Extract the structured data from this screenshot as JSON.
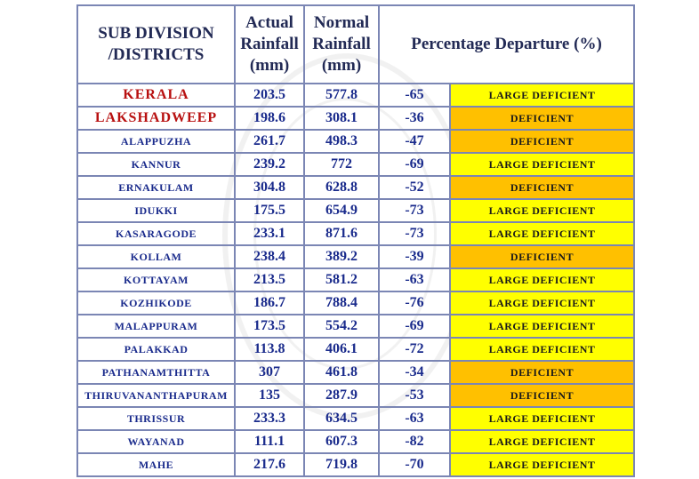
{
  "table": {
    "headers": {
      "subdivision_line1": "SUB DIVISION",
      "subdivision_line2": "/DISTRICTS",
      "actual_line1": "Actual",
      "actual_line2": "Rainfall",
      "actual_line3": "(mm)",
      "normal_line1": "Normal",
      "normal_line2": "Rainfall",
      "normal_line3": "(mm)",
      "percentage": "Percentage Departure (%)"
    },
    "rows": [
      {
        "name": "KERALA",
        "actual": "203.5",
        "normal": "577.8",
        "departure": "-65",
        "category": "LARGE DEFICIENT",
        "color": "#ffff00"
      },
      {
        "name": "LAKSHADWEEP",
        "actual": "198.6",
        "normal": "308.1",
        "departure": "-36",
        "category": "DEFICIENT",
        "color": "#ffc000"
      },
      {
        "name": "ALAPPUZHA",
        "actual": "261.7",
        "normal": "498.3",
        "departure": "-47",
        "category": "DEFICIENT",
        "color": "#ffc000"
      },
      {
        "name": "KANNUR",
        "actual": "239.2",
        "normal": "772",
        "departure": "-69",
        "category": "LARGE DEFICIENT",
        "color": "#ffff00"
      },
      {
        "name": "ERNAKULAM",
        "actual": "304.8",
        "normal": "628.8",
        "departure": "-52",
        "category": "DEFICIENT",
        "color": "#ffc000"
      },
      {
        "name": "IDUKKI",
        "actual": "175.5",
        "normal": "654.9",
        "departure": "-73",
        "category": "LARGE DEFICIENT",
        "color": "#ffff00"
      },
      {
        "name": "KASARAGODE",
        "actual": "233.1",
        "normal": "871.6",
        "departure": "-73",
        "category": "LARGE DEFICIENT",
        "color": "#ffff00"
      },
      {
        "name": "KOLLAM",
        "actual": "238.4",
        "normal": "389.2",
        "departure": "-39",
        "category": "DEFICIENT",
        "color": "#ffc000"
      },
      {
        "name": "KOTTAYAM",
        "actual": "213.5",
        "normal": "581.2",
        "departure": "-63",
        "category": "LARGE DEFICIENT",
        "color": "#ffff00"
      },
      {
        "name": "KOZHIKODE",
        "actual": "186.7",
        "normal": "788.4",
        "departure": "-76",
        "category": "LARGE DEFICIENT",
        "color": "#ffff00"
      },
      {
        "name": "MALAPPURAM",
        "actual": "173.5",
        "normal": "554.2",
        "departure": "-69",
        "category": "LARGE DEFICIENT",
        "color": "#ffff00"
      },
      {
        "name": "PALAKKAD",
        "actual": "113.8",
        "normal": "406.1",
        "departure": "-72",
        "category": "LARGE DEFICIENT",
        "color": "#ffff00"
      },
      {
        "name": "PATHANAMTHITTA",
        "actual": "307",
        "normal": "461.8",
        "departure": "-34",
        "category": "DEFICIENT",
        "color": "#ffc000"
      },
      {
        "name": "THIRUVANANTHAPURAM",
        "actual": "135",
        "normal": "287.9",
        "departure": "-53",
        "category": "DEFICIENT",
        "color": "#ffc000"
      },
      {
        "name": "THRISSUR",
        "actual": "233.3",
        "normal": "634.5",
        "departure": "-63",
        "category": "LARGE DEFICIENT",
        "color": "#ffff00"
      },
      {
        "name": "WAYANAD",
        "actual": "111.1",
        "normal": "607.3",
        "departure": "-82",
        "category": "LARGE DEFICIENT",
        "color": "#ffff00"
      },
      {
        "name": "MAHE",
        "actual": "217.6",
        "normal": "719.8",
        "departure": "-70",
        "category": "LARGE DEFICIENT",
        "color": "#ffff00"
      }
    ]
  }
}
